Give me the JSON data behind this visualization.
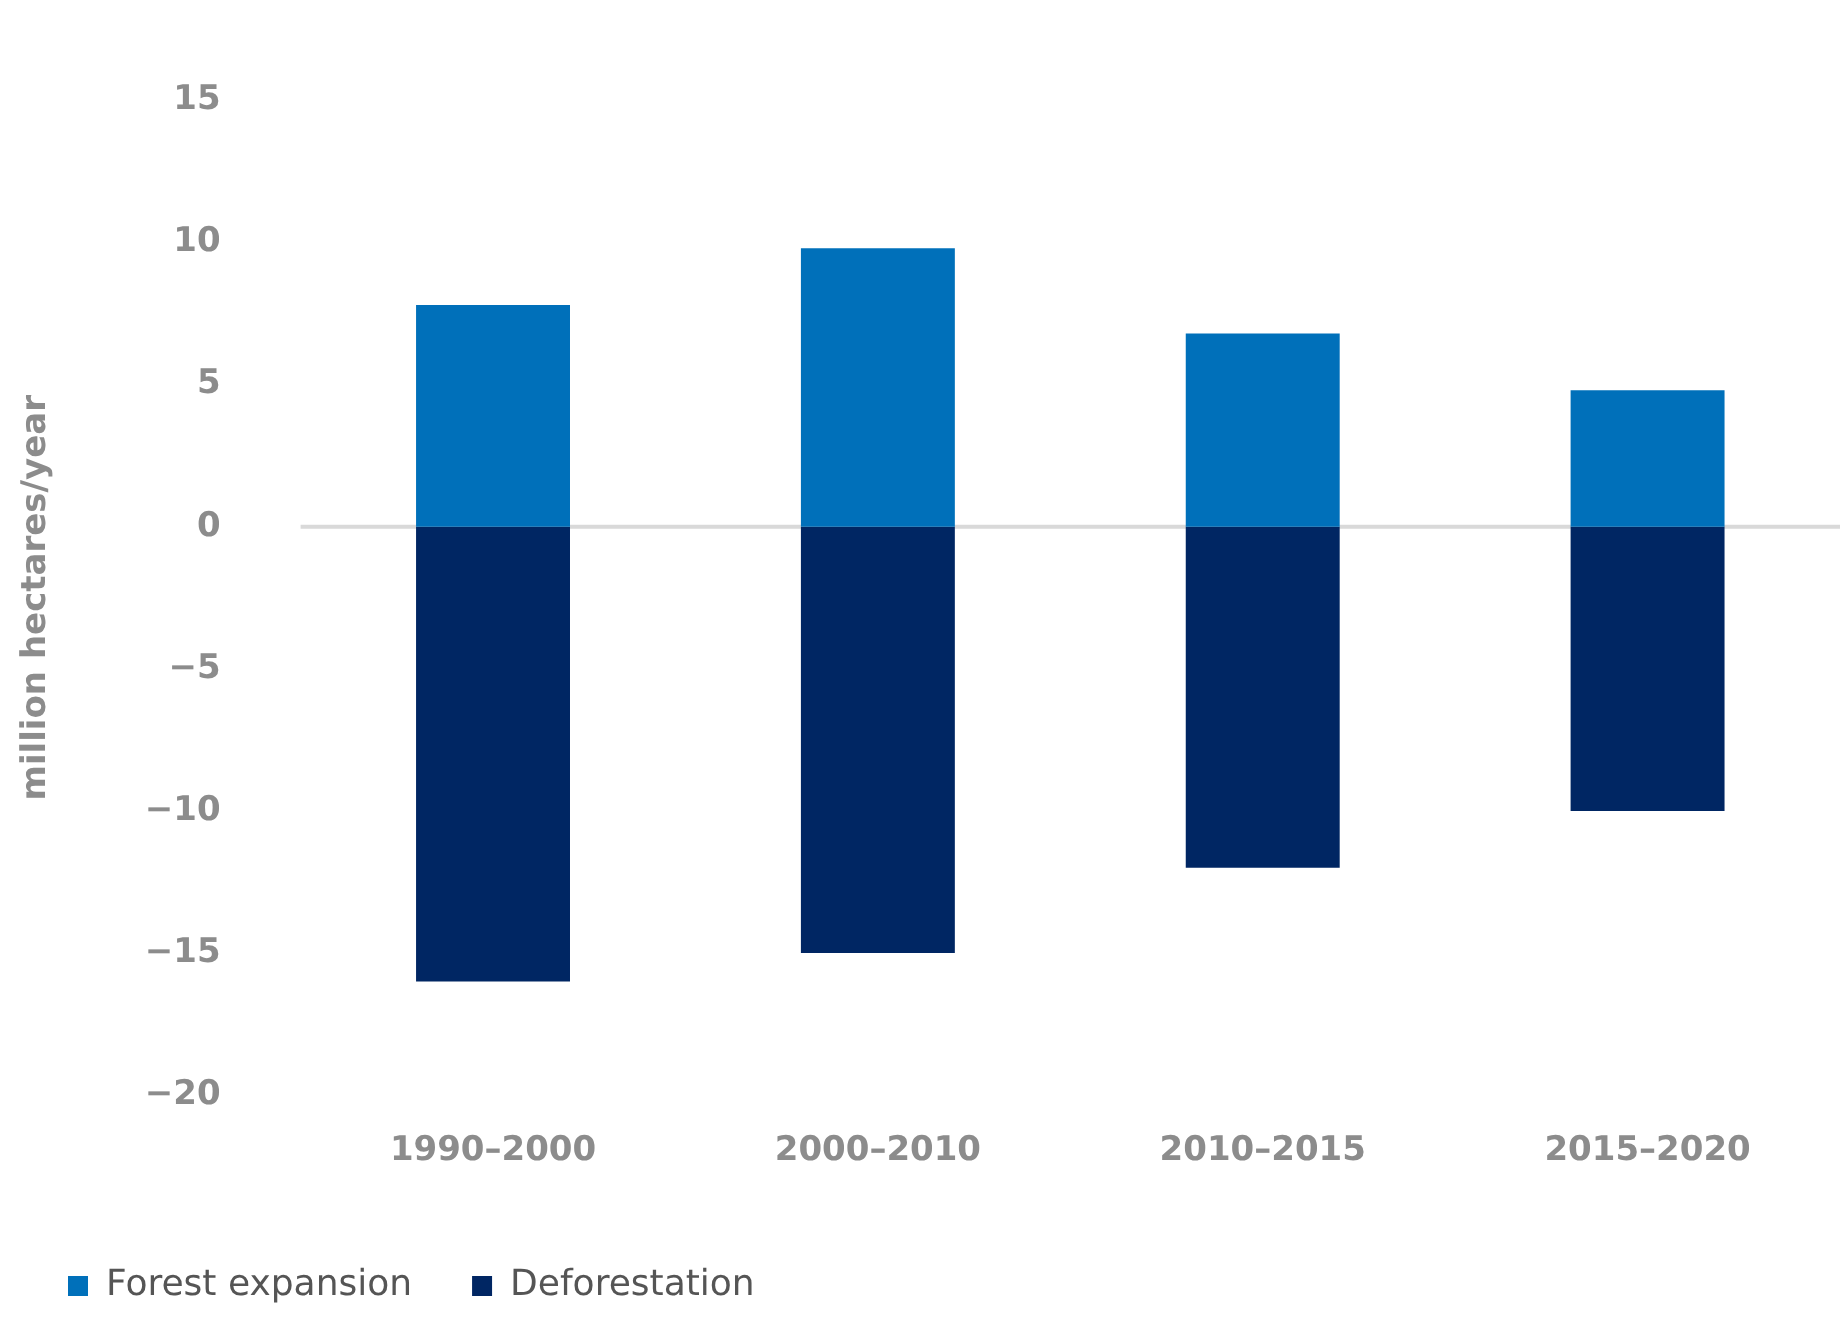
{
  "chart_data": {
    "type": "bar",
    "ylabel": "million hectares/year",
    "categories": [
      "1990–2000",
      "2000–2010",
      "2010–2015",
      "2015–2020"
    ],
    "stacked": true,
    "series": [
      {
        "name": "Forest expansion",
        "color": "#0070ba",
        "values": [
          7.8,
          9.8,
          6.8,
          4.8
        ]
      },
      {
        "name": "Deforestation",
        "color": "#002663",
        "values": [
          -16,
          -15,
          -12,
          -10
        ]
      }
    ],
    "ylim": [
      -20,
      15
    ],
    "yticks": [
      -20,
      -15,
      -10,
      -5,
      0,
      5,
      10,
      15
    ],
    "grid": false,
    "legend": "bottom left",
    "ref_lines": [
      {
        "axis": "y",
        "value": 0,
        "color": "#d9d9d9"
      }
    ]
  }
}
